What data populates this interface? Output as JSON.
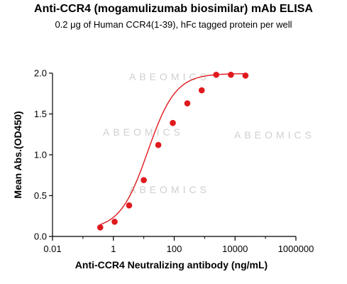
{
  "chart_data": {
    "type": "scatter",
    "title": "Anti-CCR4 (mogamulizumab biosimilar) mAb ELISA",
    "subtitle": "0.2 μg of Human CCR4(1-39), hFc tagged protein per well",
    "xlabel": "Anti-CCR4 Neutralizing antibody (ng/mL)",
    "ylabel": "Mean Abs.(OD450)",
    "x_scale": "log",
    "xlim": [
      0.01,
      1000000
    ],
    "ylim": [
      0,
      2.0
    ],
    "x_ticks": [
      0.01,
      1,
      100,
      10000,
      1000000
    ],
    "x_tick_labels": [
      "0.01",
      "1",
      "100",
      "10000",
      "1000000"
    ],
    "y_ticks": [
      0,
      0.5,
      1.0,
      1.5,
      2.0
    ],
    "y_tick_labels": [
      "0.0",
      "0.5",
      "1.0",
      "1.5",
      "2.0"
    ],
    "grid": false,
    "watermark": "ABEOMICS",
    "colors": {
      "series": "#e0191e",
      "axis": "#000000",
      "watermark": "#cfcfcf"
    },
    "series": [
      {
        "x": [
          0.37,
          1.1,
          3.3,
          10,
          30,
          90,
          270,
          800,
          2400,
          7300,
          22000
        ],
        "y": [
          0.11,
          0.18,
          0.38,
          0.69,
          1.12,
          1.39,
          1.63,
          1.79,
          1.98,
          1.98,
          1.97
        ],
        "fit": "4PL"
      }
    ]
  }
}
